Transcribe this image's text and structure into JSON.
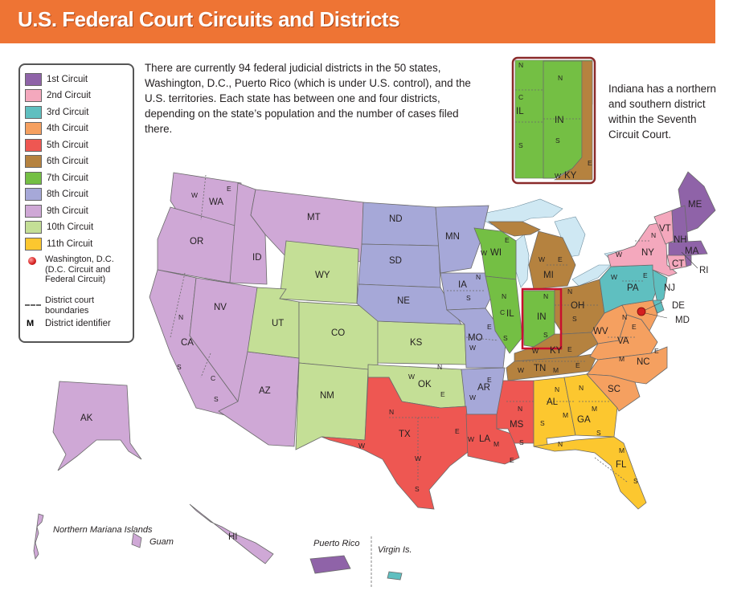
{
  "title": "U.S. Federal Court Circuits and Districts",
  "intro_text": "There are currently 94 federal judicial districts in the 50 states, Washington, D.C., Puerto Rico (which is under U.S. control), and the U.S. territories. Each state has between one and four districts, depending on the state’s population and the number of cases filed there.",
  "inset_note": "Indiana has a northern and southern district within the Seventh Circuit Court.",
  "legend": {
    "circuits": [
      {
        "label": "1st Circuit",
        "color": "#8f63a8"
      },
      {
        "label": "2nd Circuit",
        "color": "#f4a8bd"
      },
      {
        "label": "3rd Circuit",
        "color": "#5fbfc0"
      },
      {
        "label": "4th Circuit",
        "color": "#f5a060"
      },
      {
        "label": "5th Circuit",
        "color": "#ee5752"
      },
      {
        "label": "6th Circuit",
        "color": "#b5823f"
      },
      {
        "label": "7th Circuit",
        "color": "#74bf44"
      },
      {
        "label": "8th Circuit",
        "color": "#a6a8d8"
      },
      {
        "label": "9th Circuit",
        "color": "#cfa8d6"
      },
      {
        "label": "10th Circuit",
        "color": "#c4df96"
      },
      {
        "label": "11th Circuit",
        "color": "#fcc72f"
      }
    ],
    "dc_label": "Washington, D.C. (D.C. Circuit and Federal Circuit)",
    "boundary_label": "District court boundaries",
    "identifier_symbol": "M",
    "identifier_label": "District identifier"
  },
  "state_labels": [
    "WA",
    "OR",
    "ID",
    "MT",
    "WY",
    "NV",
    "CA",
    "UT",
    "CO",
    "AZ",
    "NM",
    "ND",
    "SD",
    "NE",
    "KS",
    "OK",
    "TX",
    "MN",
    "IA",
    "MO",
    "AR",
    "LA",
    "WI",
    "IL",
    "IN",
    "MI",
    "OH",
    "KY",
    "TN",
    "MS",
    "AL",
    "GA",
    "FL",
    "SC",
    "NC",
    "VA",
    "WV",
    "PA",
    "NY",
    "VT",
    "ME",
    "NH",
    "MA",
    "CT",
    "RI",
    "NJ",
    "DE",
    "MD",
    "AK",
    "HI"
  ],
  "district_letters": [
    "W",
    "E",
    "N",
    "S",
    "C",
    "M"
  ],
  "inset_labels": [
    "N",
    "C",
    "IL",
    "S",
    "N",
    "IN",
    "S",
    "E",
    "W",
    "KY"
  ],
  "territories": [
    "Northern Mariana Islands",
    "Guam",
    "Puerto Rico",
    "Virgin Is."
  ]
}
